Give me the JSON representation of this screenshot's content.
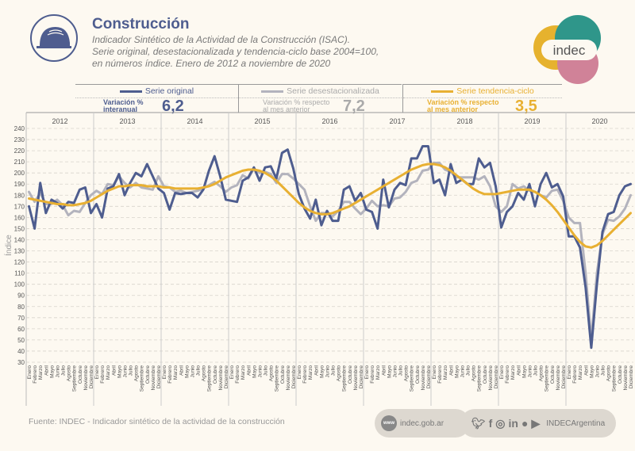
{
  "header": {
    "title": "Construcción",
    "subtitle_lines": [
      "Indicador Sintético de la Actividad de la Construcción (ISAC).",
      "Serie original, desestacionalizada y tendencia-ciclo base 2004=100,",
      "en números índice. Enero de 2012 a noviembre de 2020"
    ],
    "logo_text": "indec"
  },
  "legend": [
    {
      "name": "Serie original",
      "label_line1": "Variación %",
      "label_line2": "interanual",
      "value": "6,2",
      "color": "#4e5d8f"
    },
    {
      "name": "Serie desestacionalizada",
      "label_line1": "Variación % respecto",
      "label_line2": "al mes anterior",
      "value": "7,2",
      "color": "#b3b3bd"
    },
    {
      "name": "Serie tendencia-ciclo",
      "label_line1": "Variación % respecto",
      "label_line2": "al mes anterior",
      "value": "3,5",
      "color": "#e8b032"
    }
  ],
  "footer": {
    "source": "Fuente: INDEC - Indicador sintético de la actividad de la construcción",
    "website_icon": "www",
    "website": "indec.gob.ar",
    "social_icons": [
      "twitter-icon",
      "facebook-icon",
      "instagram-icon",
      "linkedin-icon",
      "spotify-icon",
      "youtube-icon"
    ],
    "social_handle": "INDECArgentina"
  },
  "chart_data": {
    "type": "line",
    "title": "",
    "xlabel": "",
    "ylabel": "Índice",
    "ylim": [
      30,
      240
    ],
    "yticks": [
      30,
      40,
      50,
      60,
      70,
      80,
      90,
      100,
      110,
      120,
      130,
      140,
      150,
      160,
      170,
      180,
      190,
      200,
      210,
      220,
      230,
      240
    ],
    "grid": true,
    "years": [
      "2012",
      "2013",
      "2014",
      "2015",
      "2016",
      "2017",
      "2018",
      "2019",
      "2020"
    ],
    "months": [
      "Enero",
      "Febrero",
      "Marzo",
      "Abril",
      "Mayo",
      "Junio",
      "Julio",
      "Agosto",
      "Septiembre",
      "Octubre",
      "Noviembre",
      "Diciembre"
    ],
    "series": [
      {
        "name": "Serie original",
        "color": "#4e5d8f",
        "values": [
          170,
          150,
          191,
          164,
          176,
          173,
          168,
          174,
          173,
          185,
          187,
          164,
          172,
          160,
          186,
          188,
          199,
          180,
          191,
          200,
          197,
          208,
          197,
          186,
          182,
          167,
          182,
          181,
          182,
          182,
          178,
          185,
          202,
          215,
          197,
          176,
          175,
          174,
          193,
          196,
          205,
          193,
          205,
          206,
          195,
          218,
          221,
          204,
          181,
          168,
          159,
          176,
          153,
          166,
          157,
          157,
          185,
          188,
          175,
          182,
          167,
          165,
          150,
          194,
          169,
          185,
          191,
          189,
          213,
          213,
          224,
          224,
          191,
          194,
          180,
          208,
          191,
          194,
          190,
          190,
          213,
          205,
          209,
          188,
          151,
          165,
          170,
          182,
          176,
          190,
          170,
          190,
          200,
          187,
          190,
          179,
          143,
          143,
          133,
          97,
          43,
          100,
          147,
          163,
          165,
          180,
          188,
          190
        ]
      },
      {
        "name": "Serie desestacionalizada",
        "color": "#b3b3bd",
        "values": [
          183,
          174,
          182,
          172,
          172,
          176,
          171,
          162,
          166,
          165,
          173,
          180,
          184,
          181,
          190,
          189,
          197,
          191,
          187,
          191,
          187,
          186,
          185,
          197,
          188,
          187,
          183,
          184,
          182,
          183,
          184,
          186,
          189,
          192,
          188,
          183,
          187,
          189,
          198,
          195,
          204,
          200,
          201,
          199,
          191,
          199,
          199,
          195,
          190,
          185,
          170,
          157,
          164,
          164,
          161,
          166,
          174,
          174,
          168,
          163,
          168,
          175,
          170,
          171,
          170,
          177,
          178,
          183,
          191,
          193,
          202,
          203,
          209,
          209,
          203,
          201,
          196,
          196,
          196,
          196,
          194,
          197,
          188,
          170,
          165,
          170,
          190,
          186,
          188,
          184,
          183,
          180,
          178,
          184,
          185,
          175,
          160,
          155,
          155,
          110,
          50,
          110,
          145,
          158,
          157,
          161,
          168,
          180
        ]
      },
      {
        "name": "Serie tendencia-ciclo",
        "color": "#e8b032",
        "values": [
          177,
          176,
          175,
          174,
          173,
          172,
          172,
          171,
          171,
          172,
          173,
          175,
          178,
          181,
          184,
          186,
          188,
          188,
          189,
          189,
          189,
          188,
          188,
          188,
          187,
          187,
          186,
          186,
          186,
          186,
          186,
          187,
          188,
          190,
          193,
          196,
          198,
          200,
          202,
          203,
          203,
          202,
          200,
          197,
          193,
          188,
          183,
          178,
          173,
          169,
          166,
          164,
          163,
          163,
          164,
          166,
          168,
          170,
          173,
          176,
          179,
          182,
          185,
          188,
          191,
          194,
          197,
          200,
          203,
          205,
          207,
          208,
          208,
          207,
          205,
          202,
          198,
          194,
          190,
          186,
          183,
          181,
          181,
          181,
          182,
          183,
          184,
          185,
          185,
          185,
          183,
          180,
          176,
          171,
          165,
          158,
          151,
          144,
          138,
          134,
          133,
          135,
          139,
          144,
          149,
          154,
          159,
          164
        ]
      }
    ]
  }
}
